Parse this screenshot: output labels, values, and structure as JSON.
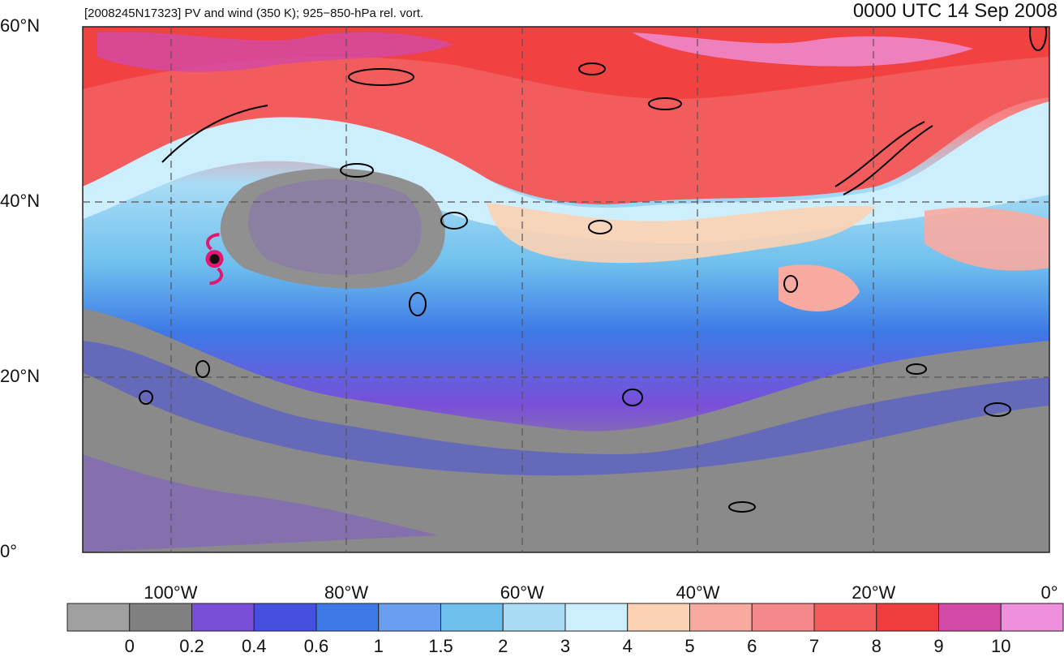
{
  "title": "[2008245N17323] PV and wind (350 K); 925−850-hPa rel. vort.",
  "valid_time": "0000 UTC 14 Sep 2008",
  "lat_ticks": [
    {
      "value": 60,
      "label": "60°N"
    },
    {
      "value": 40,
      "label": "40°N"
    },
    {
      "value": 20,
      "label": "20°N"
    },
    {
      "value": 0,
      "label": "0°"
    }
  ],
  "lon_ticks": [
    {
      "value": -100,
      "label": "100°W"
    },
    {
      "value": -80,
      "label": "80°W"
    },
    {
      "value": -60,
      "label": "60°W"
    },
    {
      "value": -40,
      "label": "40°W"
    },
    {
      "value": -20,
      "label": "20°W"
    },
    {
      "value": 0,
      "label": "0°"
    }
  ],
  "extent": {
    "lon_min": -110,
    "lon_max": 0,
    "lat_min": 0,
    "lat_max": 60
  },
  "colorbar": {
    "colors": [
      "#a0a0a0",
      "#808080",
      "#7a4fd8",
      "#4650e0",
      "#3d7ae6",
      "#6a9ff0",
      "#70c0ee",
      "#a8dcf5",
      "#cdeefc",
      "#fcd2b4",
      "#f9aaa0",
      "#f5888a",
      "#f35c5c",
      "#f03c3c",
      "#d24aa8",
      "#ee90dc"
    ],
    "labels": [
      "0",
      "0.2",
      "0.4",
      "0.6",
      "1",
      "1.5",
      "2",
      "3",
      "4",
      "5",
      "6",
      "7",
      "8",
      "9",
      "10"
    ]
  },
  "storm": {
    "name_symbol": "tropical-cyclone",
    "lon": -95,
    "lat": 33.5,
    "color": "#e0186f"
  }
}
